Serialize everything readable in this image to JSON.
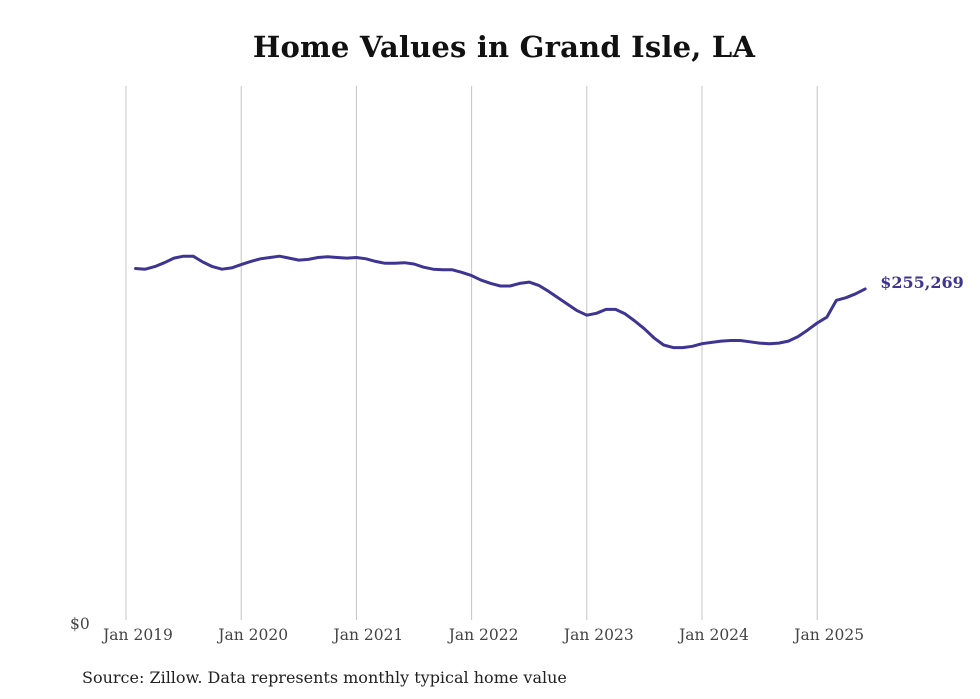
{
  "chart_data": {
    "type": "line",
    "title": "Home Values in Grand Isle, LA",
    "xlabel": "",
    "ylabel": "",
    "x_ticks": [
      "Jan 2019",
      "Jan 2020",
      "Jan 2021",
      "Jan 2022",
      "Jan 2023",
      "Jan 2024",
      "Jan 2025"
    ],
    "y_ticks": [
      "$0"
    ],
    "ylim": [
      0,
      450000
    ],
    "grid": "vertical",
    "line_color": "#3d3591",
    "end_label": "$255,269",
    "series": [
      {
        "values": [
          [
            2019.083,
            271000
          ],
          [
            2019.167,
            270500
          ],
          [
            2019.25,
            272500
          ],
          [
            2019.333,
            275500
          ],
          [
            2019.417,
            279000
          ],
          [
            2019.5,
            280500
          ],
          [
            2019.583,
            280500
          ],
          [
            2019.667,
            276000
          ],
          [
            2019.75,
            272500
          ],
          [
            2019.833,
            270500
          ],
          [
            2019.917,
            271500
          ],
          [
            2020.0,
            274000
          ],
          [
            2020.083,
            276500
          ],
          [
            2020.167,
            278500
          ],
          [
            2020.25,
            279500
          ],
          [
            2020.333,
            280500
          ],
          [
            2020.417,
            279000
          ],
          [
            2020.5,
            277500
          ],
          [
            2020.583,
            278000
          ],
          [
            2020.667,
            279500
          ],
          [
            2020.75,
            280000
          ],
          [
            2020.833,
            279500
          ],
          [
            2020.917,
            279000
          ],
          [
            2021.0,
            279500
          ],
          [
            2021.083,
            278500
          ],
          [
            2021.167,
            276500
          ],
          [
            2021.25,
            275000
          ],
          [
            2021.333,
            275000
          ],
          [
            2021.417,
            275500
          ],
          [
            2021.5,
            274500
          ],
          [
            2021.583,
            272000
          ],
          [
            2021.667,
            270500
          ],
          [
            2021.75,
            270000
          ],
          [
            2021.833,
            270000
          ],
          [
            2021.917,
            268000
          ],
          [
            2022.0,
            265500
          ],
          [
            2022.083,
            262000
          ],
          [
            2022.167,
            259500
          ],
          [
            2022.25,
            257500
          ],
          [
            2022.333,
            257500
          ],
          [
            2022.417,
            259500
          ],
          [
            2022.5,
            260500
          ],
          [
            2022.583,
            258000
          ],
          [
            2022.667,
            253500
          ],
          [
            2022.75,
            248500
          ],
          [
            2022.833,
            243500
          ],
          [
            2022.917,
            238500
          ],
          [
            2023.0,
            235000
          ],
          [
            2023.083,
            236500
          ],
          [
            2023.167,
            239500
          ],
          [
            2023.25,
            239500
          ],
          [
            2023.333,
            236000
          ],
          [
            2023.417,
            230500
          ],
          [
            2023.5,
            224500
          ],
          [
            2023.583,
            217500
          ],
          [
            2023.667,
            212000
          ],
          [
            2023.75,
            210000
          ],
          [
            2023.833,
            210000
          ],
          [
            2023.917,
            211000
          ],
          [
            2024.0,
            213000
          ],
          [
            2024.083,
            214000
          ],
          [
            2024.167,
            215000
          ],
          [
            2024.25,
            215500
          ],
          [
            2024.333,
            215500
          ],
          [
            2024.417,
            214500
          ],
          [
            2024.5,
            213500
          ],
          [
            2024.583,
            213000
          ],
          [
            2024.667,
            213500
          ],
          [
            2024.75,
            215000
          ],
          [
            2024.833,
            218500
          ],
          [
            2024.917,
            223500
          ],
          [
            2025.0,
            229000
          ],
          [
            2025.083,
            233500
          ],
          [
            2025.167,
            246500
          ],
          [
            2025.25,
            248500
          ],
          [
            2025.333,
            251500
          ],
          [
            2025.417,
            255269
          ]
        ]
      }
    ]
  },
  "footer": {
    "source": "Source: Zillow. Data represents monthly typical home value"
  }
}
